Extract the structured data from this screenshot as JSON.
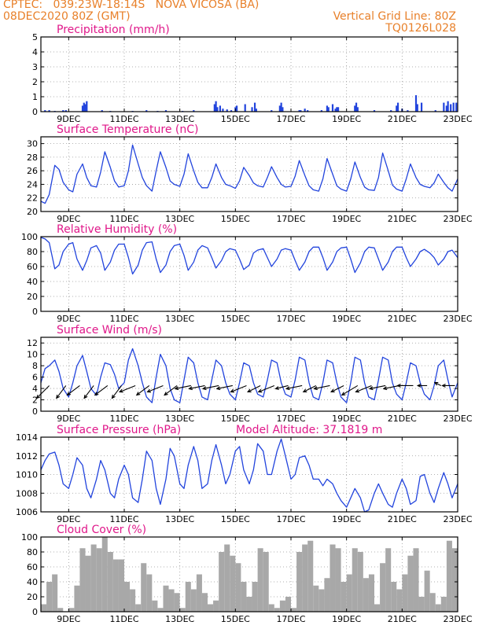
{
  "header": {
    "line1_left": "CPTEC:   039:23W-18:14S   NOVA VICOSA (BA)",
    "line2_left": "08DEC2020 80Z (GMT)",
    "line1_right": "Vertical Grid Line: 80Z",
    "line2_right": "TQ0126L028"
  },
  "colors": {
    "header": "#e8802a",
    "panel_title": "#e0188a",
    "line": "#2244dd",
    "wind_arrow": "#000000",
    "cloud_bar": "#a8a8a8",
    "grid": "#999999"
  },
  "x_axis": {
    "range_days": [
      8,
      23
    ],
    "ticks": [
      {
        "day": 9,
        "label": "9DEC"
      },
      {
        "day": 11,
        "label": "11DEC"
      },
      {
        "day": 13,
        "label": "13DEC"
      },
      {
        "day": 15,
        "label": "15DEC"
      },
      {
        "day": 17,
        "label": "17DEC"
      },
      {
        "day": 19,
        "label": "19DEC"
      },
      {
        "day": 21,
        "label": "21DEC"
      },
      {
        "day": 23,
        "label": "23DEC"
      }
    ]
  },
  "chart_data": [
    {
      "id": "precipitation",
      "type": "bar",
      "title": "Precipitation (mm/h)",
      "ylim": [
        0,
        5
      ],
      "yticks": [
        0,
        1,
        2,
        3,
        4,
        5
      ],
      "x": [
        8.15,
        8.3,
        8.5,
        8.8,
        8.9,
        9.5,
        9.55,
        9.6,
        9.65,
        10.2,
        10.5,
        11.3,
        11.8,
        12.2,
        12.5,
        13.1,
        13.5,
        14.25,
        14.3,
        14.35,
        14.45,
        14.55,
        14.7,
        14.85,
        15.0,
        15.05,
        15.35,
        15.6,
        15.7,
        15.75,
        16.3,
        16.6,
        16.65,
        16.7,
        17.3,
        17.35,
        17.5,
        17.6,
        18.1,
        18.3,
        18.35,
        18.5,
        18.6,
        18.65,
        18.7,
        19.3,
        19.35,
        19.4,
        20.0,
        20.6,
        20.8,
        20.85,
        21.0,
        21.2,
        21.5,
        21.55,
        21.7,
        22.2,
        22.5,
        22.6,
        22.65,
        22.75,
        22.85,
        22.95
      ],
      "values": [
        0.1,
        0.1,
        0.05,
        0.1,
        0.1,
        0.4,
        0.6,
        0.5,
        0.7,
        0.1,
        0.05,
        0.05,
        0.1,
        0.05,
        0.1,
        0.05,
        0.1,
        0.5,
        0.7,
        0.3,
        0.4,
        0.2,
        0.15,
        0.1,
        0.3,
        0.4,
        0.5,
        0.3,
        0.6,
        0.2,
        0.1,
        0.4,
        0.6,
        0.3,
        0.1,
        0.1,
        0.2,
        0.1,
        0.1,
        0.4,
        0.3,
        0.5,
        0.2,
        0.3,
        0.3,
        0.4,
        0.6,
        0.3,
        0.1,
        0.1,
        0.4,
        0.6,
        0.2,
        0.1,
        1.1,
        0.5,
        0.6,
        0.1,
        0.6,
        0.4,
        0.7,
        0.5,
        0.6,
        0.6
      ]
    },
    {
      "id": "temperature",
      "type": "line",
      "title": "Surface Temperature (nC)",
      "ylim": [
        20,
        31
      ],
      "yticks": [
        20,
        22,
        24,
        26,
        28,
        30
      ],
      "x": [
        8.0,
        8.15,
        8.3,
        8.5,
        8.65,
        8.8,
        9.0,
        9.15,
        9.3,
        9.5,
        9.65,
        9.8,
        10.0,
        10.15,
        10.3,
        10.5,
        10.65,
        10.8,
        11.0,
        11.15,
        11.3,
        11.5,
        11.65,
        11.8,
        12.0,
        12.15,
        12.3,
        12.5,
        12.65,
        12.8,
        13.0,
        13.15,
        13.3,
        13.5,
        13.65,
        13.8,
        14.0,
        14.15,
        14.3,
        14.5,
        14.65,
        14.8,
        15.0,
        15.15,
        15.3,
        15.5,
        15.65,
        15.8,
        16.0,
        16.15,
        16.3,
        16.5,
        16.65,
        16.8,
        17.0,
        17.15,
        17.3,
        17.5,
        17.65,
        17.8,
        18.0,
        18.15,
        18.3,
        18.5,
        18.65,
        18.8,
        19.0,
        19.15,
        19.3,
        19.5,
        19.65,
        19.8,
        20.0,
        20.15,
        20.3,
        20.5,
        20.65,
        20.8,
        21.0,
        21.15,
        21.3,
        21.5,
        21.65,
        21.8,
        22.0,
        22.15,
        22.3,
        22.5,
        22.65,
        22.8,
        23.0
      ],
      "values": [
        21.5,
        21.2,
        22.5,
        26.8,
        26.2,
        24.3,
        23.2,
        22.9,
        25.5,
        27.0,
        25.0,
        23.8,
        23.6,
        25.8,
        28.8,
        26.5,
        24.5,
        23.6,
        23.8,
        26.0,
        29.8,
        27.0,
        25.0,
        23.8,
        23.0,
        26.0,
        28.8,
        26.5,
        24.5,
        24.0,
        23.7,
        25.5,
        28.5,
        26.0,
        24.3,
        23.5,
        23.5,
        25.0,
        27.0,
        25.0,
        24.0,
        23.8,
        23.4,
        24.5,
        26.5,
        25.3,
        24.2,
        23.8,
        23.6,
        25.0,
        26.6,
        25.0,
        24.0,
        23.6,
        23.7,
        25.2,
        27.5,
        25.3,
        23.8,
        23.2,
        23.0,
        24.8,
        27.8,
        25.5,
        23.8,
        23.3,
        23.0,
        24.8,
        27.3,
        25.0,
        23.6,
        23.2,
        23.1,
        25.0,
        28.6,
        26.0,
        23.9,
        23.3,
        23.0,
        24.8,
        27.0,
        25.0,
        24.0,
        23.7,
        23.5,
        24.2,
        25.5,
        24.3,
        23.5,
        23.0,
        24.8
      ]
    },
    {
      "id": "humidity",
      "type": "line",
      "title": "Relative Humidity (%)",
      "ylim": [
        0,
        100
      ],
      "yticks": [
        0,
        20,
        40,
        60,
        80,
        100
      ],
      "x": [
        8.0,
        8.15,
        8.3,
        8.5,
        8.65,
        8.8,
        9.0,
        9.15,
        9.3,
        9.5,
        9.65,
        9.8,
        10.0,
        10.15,
        10.3,
        10.5,
        10.65,
        10.8,
        11.0,
        11.15,
        11.3,
        11.5,
        11.65,
        11.8,
        12.0,
        12.15,
        12.3,
        12.5,
        12.65,
        12.8,
        13.0,
        13.15,
        13.3,
        13.5,
        13.65,
        13.8,
        14.0,
        14.15,
        14.3,
        14.5,
        14.65,
        14.8,
        15.0,
        15.15,
        15.3,
        15.5,
        15.65,
        15.8,
        16.0,
        16.15,
        16.3,
        16.5,
        16.65,
        16.8,
        17.0,
        17.15,
        17.3,
        17.5,
        17.65,
        17.8,
        18.0,
        18.15,
        18.3,
        18.5,
        18.65,
        18.8,
        19.0,
        19.15,
        19.3,
        19.5,
        19.65,
        19.8,
        20.0,
        20.15,
        20.3,
        20.5,
        20.65,
        20.8,
        21.0,
        21.15,
        21.3,
        21.5,
        21.65,
        21.8,
        22.0,
        22.15,
        22.3,
        22.5,
        22.65,
        22.8,
        23.0
      ],
      "values": [
        99,
        97,
        92,
        57,
        62,
        80,
        90,
        92,
        70,
        55,
        68,
        85,
        88,
        78,
        55,
        66,
        82,
        90,
        90,
        72,
        50,
        62,
        82,
        92,
        93,
        70,
        52,
        62,
        80,
        88,
        90,
        75,
        55,
        66,
        82,
        88,
        85,
        72,
        58,
        68,
        80,
        84,
        82,
        70,
        56,
        62,
        78,
        82,
        84,
        72,
        60,
        70,
        82,
        84,
        82,
        68,
        55,
        66,
        80,
        86,
        86,
        72,
        55,
        66,
        80,
        85,
        86,
        70,
        52,
        65,
        80,
        86,
        85,
        70,
        55,
        66,
        80,
        86,
        86,
        72,
        60,
        70,
        80,
        83,
        78,
        72,
        62,
        70,
        80,
        82,
        72
      ]
    },
    {
      "id": "wind",
      "type": "line",
      "title": "Surface Wind (m/s)",
      "ylim": [
        0,
        13
      ],
      "yticks": [
        0,
        2,
        4,
        6,
        8,
        10,
        12
      ],
      "x": [
        8.0,
        8.15,
        8.3,
        8.5,
        8.65,
        8.8,
        9.0,
        9.15,
        9.3,
        9.5,
        9.65,
        9.8,
        10.0,
        10.15,
        10.3,
        10.5,
        10.65,
        10.8,
        11.0,
        11.15,
        11.3,
        11.5,
        11.65,
        11.8,
        12.0,
        12.15,
        12.3,
        12.5,
        12.65,
        12.8,
        13.0,
        13.15,
        13.3,
        13.5,
        13.65,
        13.8,
        14.0,
        14.15,
        14.3,
        14.5,
        14.65,
        14.8,
        15.0,
        15.15,
        15.3,
        15.5,
        15.65,
        15.8,
        16.0,
        16.15,
        16.3,
        16.5,
        16.65,
        16.8,
        17.0,
        17.15,
        17.3,
        17.5,
        17.65,
        17.8,
        18.0,
        18.15,
        18.3,
        18.5,
        18.65,
        18.8,
        19.0,
        19.15,
        19.3,
        19.5,
        19.65,
        19.8,
        20.0,
        20.15,
        20.3,
        20.5,
        20.65,
        20.8,
        21.0,
        21.15,
        21.3,
        21.5,
        21.65,
        21.8,
        22.0,
        22.15,
        22.3,
        22.5,
        22.65,
        22.8,
        23.0
      ],
      "values": [
        5.0,
        7.5,
        8.0,
        9.0,
        7.0,
        4.0,
        2.5,
        5.0,
        8.0,
        9.8,
        7.0,
        4.0,
        2.8,
        6.0,
        8.5,
        8.2,
        6.5,
        4.0,
        5.0,
        9.0,
        11.0,
        8.0,
        5.0,
        2.5,
        1.5,
        6.0,
        10.0,
        8.0,
        4.0,
        2.0,
        1.5,
        5.5,
        9.5,
        8.5,
        5.0,
        2.5,
        2.0,
        5.5,
        9.0,
        8.0,
        5.0,
        3.0,
        2.0,
        5.0,
        8.5,
        8.0,
        5.0,
        3.0,
        2.5,
        5.5,
        9.0,
        8.5,
        5.0,
        3.0,
        2.5,
        5.5,
        9.5,
        9.0,
        5.0,
        2.5,
        2.0,
        5.0,
        9.0,
        8.5,
        5.0,
        2.5,
        1.5,
        5.0,
        9.5,
        9.0,
        5.0,
        2.5,
        2.0,
        5.5,
        9.5,
        9.0,
        5.0,
        3.0,
        2.0,
        5.0,
        8.5,
        8.0,
        5.0,
        3.0,
        2.0,
        4.5,
        8.0,
        9.0,
        5.5,
        2.5,
        5.0
      ],
      "arrows": [
        {
          "x": 8.3,
          "u": -4,
          "v": -4
        },
        {
          "x": 8.9,
          "u": -3,
          "v": -4
        },
        {
          "x": 9.4,
          "u": -4,
          "v": -3
        },
        {
          "x": 9.9,
          "u": -3,
          "v": -4
        },
        {
          "x": 10.4,
          "u": -4,
          "v": -3
        },
        {
          "x": 10.9,
          "u": -3,
          "v": -4
        },
        {
          "x": 11.4,
          "u": -5,
          "v": -2
        },
        {
          "x": 11.9,
          "u": -4,
          "v": -3
        },
        {
          "x": 12.4,
          "u": -5,
          "v": -2
        },
        {
          "x": 12.9,
          "u": -4,
          "v": -3
        },
        {
          "x": 13.4,
          "u": -5,
          "v": -1
        },
        {
          "x": 13.9,
          "u": -5,
          "v": -1
        },
        {
          "x": 14.4,
          "u": -5,
          "v": -1
        },
        {
          "x": 14.9,
          "u": -5,
          "v": -1
        },
        {
          "x": 15.4,
          "u": -5,
          "v": -2
        },
        {
          "x": 15.9,
          "u": -4,
          "v": -2
        },
        {
          "x": 16.4,
          "u": -5,
          "v": -2
        },
        {
          "x": 16.9,
          "u": -4,
          "v": -1
        },
        {
          "x": 17.4,
          "u": -5,
          "v": -1
        },
        {
          "x": 17.9,
          "u": -4,
          "v": -2
        },
        {
          "x": 18.4,
          "u": -5,
          "v": -1
        },
        {
          "x": 18.9,
          "u": -4,
          "v": -2
        },
        {
          "x": 19.4,
          "u": -5,
          "v": -3
        },
        {
          "x": 19.9,
          "u": -5,
          "v": -2
        },
        {
          "x": 20.4,
          "u": -5,
          "v": -1
        },
        {
          "x": 20.9,
          "u": -5,
          "v": -1
        },
        {
          "x": 21.4,
          "u": -5,
          "v": 0
        },
        {
          "x": 21.9,
          "u": -3,
          "v": 0
        },
        {
          "x": 22.4,
          "u": -2,
          "v": 1
        },
        {
          "x": 22.9,
          "u": -4,
          "v": 0
        }
      ]
    },
    {
      "id": "pressure",
      "type": "line",
      "title": "Surface Pressure (hPa)",
      "annotation": "Model Altitude: 37.1819 m",
      "ylim": [
        1006,
        1014
      ],
      "yticks": [
        1006,
        1008,
        1010,
        1012,
        1014
      ],
      "x": [
        8.0,
        8.15,
        8.3,
        8.5,
        8.65,
        8.8,
        9.0,
        9.15,
        9.3,
        9.5,
        9.65,
        9.8,
        10.0,
        10.15,
        10.3,
        10.5,
        10.65,
        10.8,
        11.0,
        11.15,
        11.3,
        11.5,
        11.65,
        11.8,
        12.0,
        12.15,
        12.3,
        12.5,
        12.65,
        12.8,
        13.0,
        13.15,
        13.3,
        13.5,
        13.65,
        13.8,
        14.0,
        14.15,
        14.3,
        14.5,
        14.65,
        14.8,
        15.0,
        15.15,
        15.3,
        15.5,
        15.65,
        15.8,
        16.0,
        16.15,
        16.3,
        16.5,
        16.65,
        16.8,
        17.0,
        17.15,
        17.3,
        17.5,
        17.65,
        17.8,
        18.0,
        18.15,
        18.3,
        18.5,
        18.65,
        18.8,
        19.0,
        19.15,
        19.3,
        19.5,
        19.65,
        19.8,
        20.0,
        20.15,
        20.3,
        20.5,
        20.65,
        20.8,
        21.0,
        21.15,
        21.3,
        21.5,
        21.65,
        21.8,
        22.0,
        22.15,
        22.3,
        22.5,
        22.65,
        22.8,
        23.0
      ],
      "values": [
        1010.5,
        1011.5,
        1012.2,
        1012.4,
        1011.0,
        1009.0,
        1008.5,
        1010.0,
        1011.8,
        1011.0,
        1008.5,
        1007.5,
        1009.5,
        1011.5,
        1010.5,
        1008.0,
        1007.5,
        1009.5,
        1011.0,
        1010.0,
        1007.5,
        1007.0,
        1009.5,
        1012.5,
        1011.5,
        1008.5,
        1006.8,
        1009.5,
        1012.8,
        1012.0,
        1009.0,
        1008.5,
        1011.0,
        1013.0,
        1011.5,
        1008.5,
        1009.0,
        1011.5,
        1013.2,
        1011.0,
        1009.0,
        1010.0,
        1012.5,
        1013.0,
        1010.5,
        1009.0,
        1010.5,
        1013.3,
        1012.5,
        1010.0,
        1010.0,
        1012.5,
        1013.8,
        1012.0,
        1009.5,
        1010.0,
        1011.8,
        1012.0,
        1011.0,
        1009.5,
        1009.5,
        1008.8,
        1009.5,
        1009.0,
        1008.0,
        1007.2,
        1006.5,
        1007.5,
        1008.5,
        1007.5,
        1006.0,
        1006.2,
        1008.0,
        1009.0,
        1008.0,
        1006.8,
        1006.5,
        1008.0,
        1009.5,
        1008.5,
        1006.8,
        1007.2,
        1009.8,
        1010.0,
        1008.0,
        1007.0,
        1008.5,
        1010.2,
        1009.0,
        1007.5,
        1009.0
      ]
    },
    {
      "id": "cloud",
      "type": "bar",
      "title": "Cloud Cover (%)",
      "ylim": [
        0,
        100
      ],
      "yticks": [
        0,
        20,
        40,
        60,
        80,
        100
      ],
      "x": [
        8.0,
        8.2,
        8.4,
        8.6,
        8.8,
        9.0,
        9.2,
        9.4,
        9.6,
        9.8,
        10.0,
        10.2,
        10.4,
        10.6,
        10.8,
        11.0,
        11.2,
        11.4,
        11.6,
        11.8,
        12.0,
        12.2,
        12.4,
        12.6,
        12.8,
        13.0,
        13.2,
        13.4,
        13.6,
        13.8,
        14.0,
        14.2,
        14.4,
        14.6,
        14.8,
        15.0,
        15.2,
        15.4,
        15.6,
        15.8,
        16.0,
        16.2,
        16.4,
        16.6,
        16.8,
        17.0,
        17.2,
        17.4,
        17.6,
        17.8,
        18.0,
        18.2,
        18.4,
        18.6,
        18.8,
        19.0,
        19.2,
        19.4,
        19.6,
        19.8,
        20.0,
        20.2,
        20.4,
        20.6,
        20.8,
        21.0,
        21.2,
        21.4,
        21.6,
        21.8,
        22.0,
        22.2,
        22.4,
        22.6,
        22.8
      ],
      "values": [
        10,
        40,
        50,
        5,
        0,
        5,
        35,
        85,
        75,
        90,
        85,
        100,
        80,
        70,
        70,
        40,
        30,
        10,
        65,
        50,
        15,
        5,
        35,
        30,
        25,
        5,
        40,
        30,
        50,
        25,
        10,
        15,
        80,
        90,
        75,
        65,
        40,
        20,
        40,
        85,
        80,
        10,
        5,
        15,
        20,
        5,
        80,
        90,
        95,
        35,
        30,
        45,
        90,
        85,
        40,
        50,
        85,
        80,
        45,
        50,
        10,
        65,
        85,
        40,
        30,
        50,
        75,
        85,
        20,
        55,
        25,
        10,
        20,
        95,
        85
      ]
    }
  ]
}
